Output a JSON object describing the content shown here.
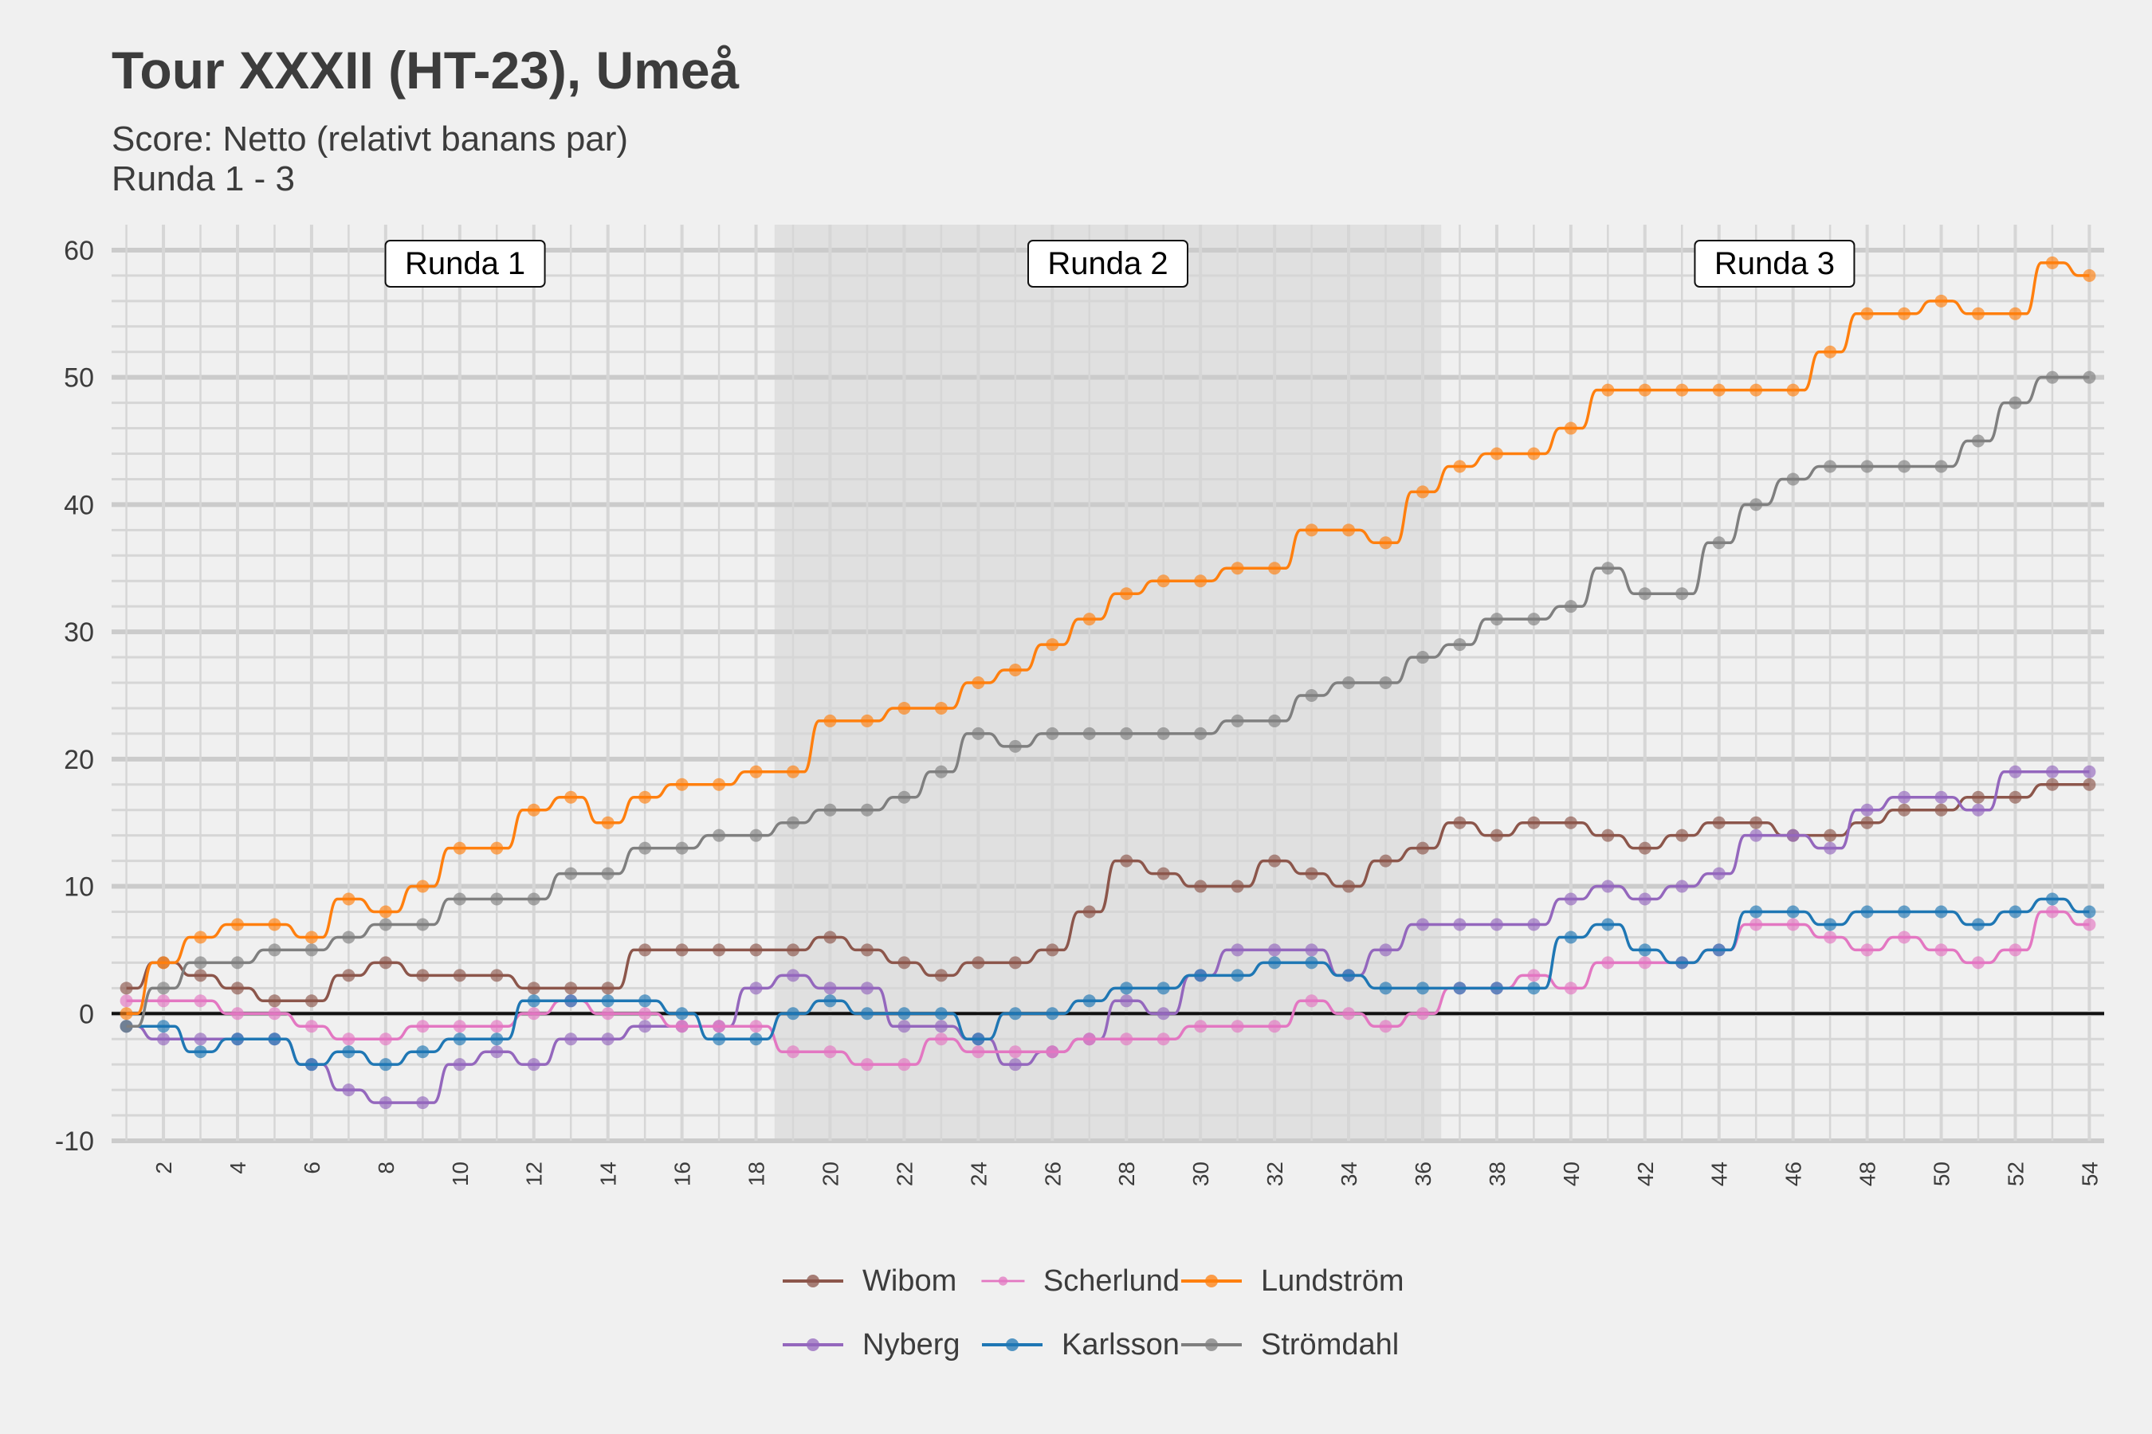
{
  "chart_data": {
    "type": "line",
    "title": "Tour XXXII (HT-23), Umeå",
    "subtitle_lines": [
      "Score: Netto (relativt banans par)",
      "Runda 1 - 3"
    ],
    "xlabel": "",
    "ylabel": "",
    "xlim": [
      1,
      54
    ],
    "ylim": [
      -10,
      62
    ],
    "y_ticks": [
      -10,
      0,
      10,
      20,
      30,
      40,
      50,
      60
    ],
    "x_ticks": [
      2,
      4,
      6,
      8,
      10,
      12,
      14,
      16,
      18,
      20,
      22,
      24,
      26,
      28,
      30,
      32,
      34,
      36,
      38,
      40,
      42,
      44,
      46,
      48,
      50,
      52,
      54
    ],
    "rounds": [
      {
        "label": "Runda 1",
        "holes": [
          1,
          18
        ],
        "shaded": false
      },
      {
        "label": "Runda 2",
        "holes": [
          19,
          36
        ],
        "shaded": true
      },
      {
        "label": "Runda 3",
        "holes": [
          37,
          54
        ],
        "shaded": false
      }
    ],
    "legend_position": "bottom",
    "grid": true,
    "x": [
      1,
      2,
      3,
      4,
      5,
      6,
      7,
      8,
      9,
      10,
      11,
      12,
      13,
      14,
      15,
      16,
      17,
      18,
      19,
      20,
      21,
      22,
      23,
      24,
      25,
      26,
      27,
      28,
      29,
      30,
      31,
      32,
      33,
      34,
      35,
      36,
      37,
      38,
      39,
      40,
      41,
      42,
      43,
      44,
      45,
      46,
      47,
      48,
      49,
      50,
      51,
      52,
      53,
      54
    ],
    "series": [
      {
        "name": "Wibom",
        "color": "#8c564b",
        "values": [
          2,
          4,
          3,
          2,
          1,
          1,
          3,
          4,
          3,
          3,
          3,
          2,
          2,
          2,
          5,
          5,
          5,
          5,
          5,
          6,
          5,
          4,
          3,
          4,
          4,
          5,
          8,
          12,
          11,
          10,
          10,
          12,
          11,
          10,
          12,
          13,
          15,
          14,
          15,
          15,
          14,
          13,
          14,
          15,
          15,
          14,
          14,
          15,
          16,
          16,
          17,
          17,
          18,
          18
        ]
      },
      {
        "name": "Nyberg",
        "color": "#9467bd",
        "values": [
          -1,
          -2,
          -2,
          -2,
          -2,
          -4,
          -6,
          -7,
          -7,
          -4,
          -3,
          -4,
          -2,
          -2,
          -1,
          -1,
          -1,
          2,
          3,
          2,
          2,
          -1,
          -1,
          -2,
          -4,
          -3,
          -2,
          1,
          0,
          3,
          5,
          5,
          5,
          3,
          5,
          7,
          7,
          7,
          7,
          9,
          10,
          9,
          10,
          11,
          14,
          14,
          13,
          16,
          17,
          17,
          16,
          19,
          19,
          19
        ]
      },
      {
        "name": "Scherlund",
        "color": "#e377c2",
        "values": [
          1,
          1,
          1,
          0,
          0,
          -1,
          -2,
          -2,
          -1,
          -1,
          -1,
          0,
          1,
          0,
          0,
          -1,
          -1,
          -1,
          -3,
          -3,
          -4,
          -4,
          -2,
          -3,
          -3,
          -3,
          -2,
          -2,
          -2,
          -1,
          -1,
          -1,
          1,
          0,
          -1,
          0,
          2,
          2,
          3,
          2,
          4,
          4,
          4,
          5,
          7,
          7,
          6,
          5,
          6,
          5,
          4,
          5,
          8,
          7
        ]
      },
      {
        "name": "Karlsson",
        "color": "#1f77b4",
        "values": [
          -1,
          -1,
          -3,
          -2,
          -2,
          -4,
          -3,
          -4,
          -3,
          -2,
          -2,
          1,
          1,
          1,
          1,
          0,
          -2,
          -2,
          0,
          1,
          0,
          0,
          0,
          -2,
          0,
          0,
          1,
          2,
          2,
          3,
          3,
          4,
          4,
          3,
          2,
          2,
          2,
          2,
          2,
          6,
          7,
          5,
          4,
          5,
          8,
          8,
          7,
          8,
          8,
          8,
          7,
          8,
          9,
          8
        ]
      },
      {
        "name": "Lundström",
        "color": "#ff7f0e",
        "values": [
          0,
          4,
          6,
          7,
          7,
          6,
          9,
          8,
          10,
          13,
          13,
          16,
          17,
          15,
          17,
          18,
          18,
          19,
          19,
          23,
          23,
          24,
          24,
          26,
          27,
          29,
          31,
          33,
          34,
          34,
          35,
          35,
          38,
          38,
          37,
          41,
          43,
          44,
          44,
          46,
          49,
          49,
          49,
          49,
          49,
          49,
          52,
          55,
          55,
          56,
          55,
          55,
          59,
          58
        ]
      },
      {
        "name": "Strömdahl",
        "color": "#7f7f7f",
        "values": [
          -1,
          2,
          4,
          4,
          5,
          5,
          6,
          7,
          7,
          9,
          9,
          9,
          11,
          11,
          13,
          13,
          14,
          14,
          15,
          16,
          16,
          17,
          19,
          22,
          21,
          22,
          22,
          22,
          22,
          22,
          23,
          23,
          25,
          26,
          26,
          28,
          29,
          31,
          31,
          32,
          35,
          33,
          33,
          37,
          40,
          42,
          43,
          43,
          43,
          43,
          45,
          48,
          50,
          50
        ]
      }
    ]
  }
}
